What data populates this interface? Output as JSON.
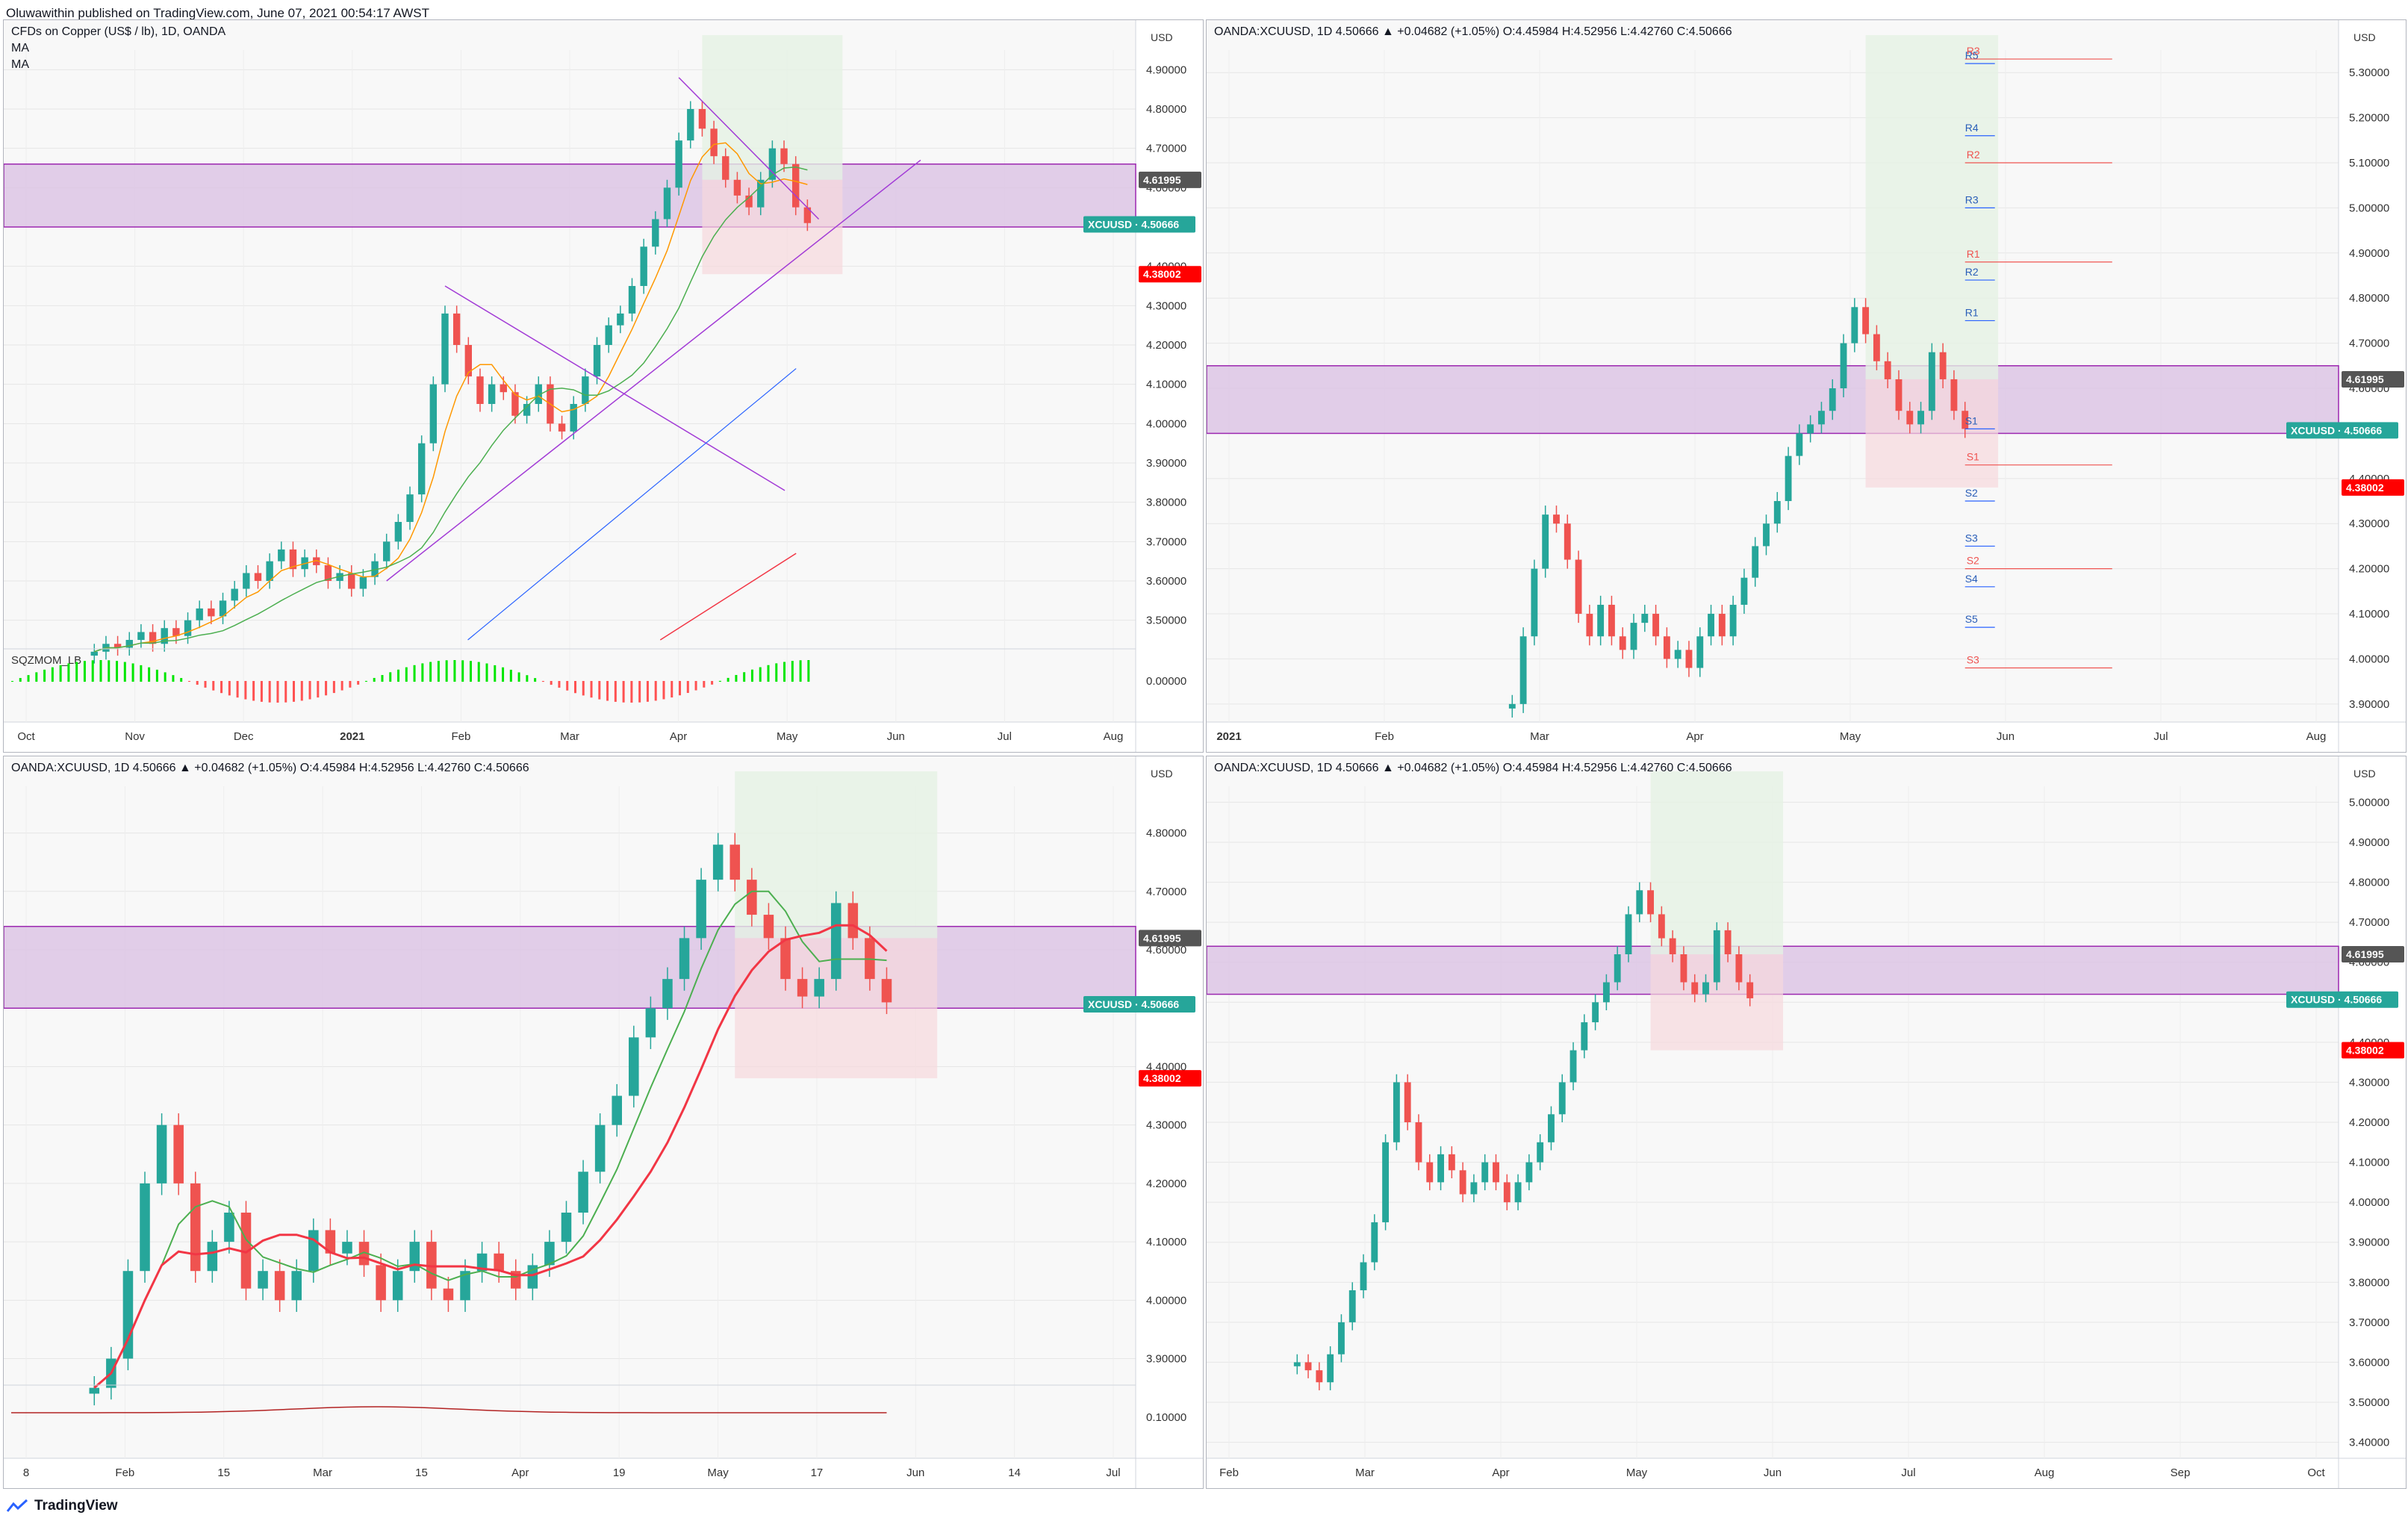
{
  "header": {
    "publisher": "Oluwawithin published on TradingView.com, June 07, 2021 00:54:17 AWST"
  },
  "footer": {
    "brand": "TradingView",
    "logo_icon": "tradingview-logo-icon"
  },
  "colors": {
    "up": "#26a69a",
    "down": "#ef5350",
    "zone": "#d9bfe3",
    "zone_border": "#9c27b0",
    "green_zone": "#e5f1e3",
    "red_zone": "#f6d8dd",
    "trend": "#a23bd6",
    "ma_orange": "#ff9800",
    "ma_green": "#4caf50",
    "ma_blue": "#2962ff",
    "ma_red": "#f23645",
    "xcu_tag": "#26a69a",
    "stop_tag": "#ff0000",
    "level_tag": "#555555"
  },
  "chart_data": [
    {
      "type": "candlestick",
      "id": "top-left",
      "legend": [
        "CFDs on Copper (US$ / lb), 1D, OANDA",
        "MA",
        "MA"
      ],
      "currency": "USD",
      "y_ticks": [
        "4.90000",
        "4.80000",
        "4.70000",
        "4.60000",
        "4.50000",
        "4.40000",
        "4.30000",
        "4.20000",
        "4.10000",
        "4.00000",
        "3.90000",
        "3.80000",
        "3.70000",
        "3.60000",
        "3.50000"
      ],
      "ylim": [
        3.45,
        4.95
      ],
      "x_labels": [
        "Oct",
        "Nov",
        "Dec",
        "2021",
        "Feb",
        "Mar",
        "Apr",
        "May",
        "Jun",
        "Jul",
        "Aug"
      ],
      "price_tags": [
        {
          "label": "4.61995",
          "value": 4.61995,
          "kind": "level"
        },
        {
          "label": "XCUUSD · 4.50666",
          "value": 4.50666,
          "kind": "xcu"
        },
        {
          "label": "4.38002",
          "value": 4.38002,
          "kind": "stop"
        }
      ],
      "zone": [
        4.5,
        4.66
      ],
      "indicator": {
        "name": "SQZMOM_LB",
        "zero_label": "0.00000"
      },
      "series": [
        {
          "name": "XCUUSD",
          "values": [
            3.42,
            3.44,
            3.43,
            3.45,
            3.47,
            3.44,
            3.48,
            3.46,
            3.5,
            3.53,
            3.51,
            3.55,
            3.58,
            3.62,
            3.6,
            3.65,
            3.68,
            3.63,
            3.66,
            3.64,
            3.6,
            3.62,
            3.58,
            3.61,
            3.65,
            3.7,
            3.75,
            3.82,
            3.95,
            4.1,
            4.28,
            4.2,
            4.12,
            4.05,
            4.1,
            4.08,
            4.02,
            4.05,
            4.1,
            4.0,
            3.98,
            4.05,
            4.12,
            4.2,
            4.25,
            4.28,
            4.35,
            4.45,
            4.52,
            4.6,
            4.72,
            4.8,
            4.75,
            4.68,
            4.62,
            4.58,
            4.55,
            4.62,
            4.7,
            4.66,
            4.55,
            4.51
          ]
        }
      ]
    },
    {
      "type": "candlestick",
      "id": "top-right",
      "legend": [
        "OANDA:XCUUSD, 1D  4.50666 ▲ +0.04682 (+1.05%) O:4.45984 H:4.52956 L:4.42760 C:4.50666"
      ],
      "currency": "USD",
      "y_ticks": [
        "5.30000",
        "5.20000",
        "5.10000",
        "5.00000",
        "4.90000",
        "4.80000",
        "4.70000",
        "4.60000",
        "4.50000",
        "4.40000",
        "4.30000",
        "4.20000",
        "4.10000",
        "4.00000",
        "3.90000"
      ],
      "ylim": [
        3.86,
        5.35
      ],
      "x_labels": [
        "2021",
        "Feb",
        "Mar",
        "Apr",
        "May",
        "Jun",
        "Jul",
        "Aug"
      ],
      "price_tags": [
        {
          "label": "4.61995",
          "value": 4.61995,
          "kind": "level"
        },
        {
          "label": "XCUUSD · 4.50666",
          "value": 4.50666,
          "kind": "xcu"
        },
        {
          "label": "4.38002",
          "value": 4.38002,
          "kind": "stop"
        }
      ],
      "zone": [
        4.5,
        4.65
      ],
      "pivots_blue": [
        {
          "label": "R5",
          "value": 5.32
        },
        {
          "label": "R4",
          "value": 5.16
        },
        {
          "label": "R3",
          "value": 5.0
        },
        {
          "label": "R2",
          "value": 4.84
        },
        {
          "label": "R1",
          "value": 4.75
        },
        {
          "label": "S1",
          "value": 4.51
        },
        {
          "label": "S2",
          "value": 4.35
        },
        {
          "label": "S3",
          "value": 4.25
        },
        {
          "label": "S4",
          "value": 4.16
        },
        {
          "label": "S5",
          "value": 4.07
        }
      ],
      "pivots_red": [
        {
          "label": "R3",
          "value": 5.33
        },
        {
          "label": "R2",
          "value": 5.1
        },
        {
          "label": "R1",
          "value": 4.88
        },
        {
          "label": "S1",
          "value": 4.43
        },
        {
          "label": "S2",
          "value": 4.2
        },
        {
          "label": "S3",
          "value": 3.98
        }
      ],
      "series": [
        {
          "name": "XCUUSD",
          "values": [
            3.9,
            4.05,
            4.2,
            4.32,
            4.3,
            4.22,
            4.1,
            4.05,
            4.12,
            4.05,
            4.02,
            4.08,
            4.1,
            4.05,
            4.0,
            4.02,
            3.98,
            4.05,
            4.1,
            4.05,
            4.12,
            4.18,
            4.25,
            4.3,
            4.35,
            4.45,
            4.5,
            4.52,
            4.55,
            4.6,
            4.7,
            4.78,
            4.72,
            4.66,
            4.62,
            4.55,
            4.52,
            4.55,
            4.68,
            4.62,
            4.55,
            4.51
          ]
        }
      ]
    },
    {
      "type": "candlestick",
      "id": "bottom-left",
      "legend": [
        "OANDA:XCUUSD, 1D  4.50666 ▲ +0.04682 (+1.05%) O:4.45984 H:4.52956 L:4.42760 C:4.50666"
      ],
      "currency": "USD",
      "y_ticks": [
        "4.80000",
        "4.70000",
        "4.60000",
        "4.50000",
        "4.40000",
        "4.30000",
        "4.20000",
        "4.10000",
        "4.00000",
        "3.90000"
      ],
      "ylim": [
        3.87,
        4.88
      ],
      "x_labels": [
        "8",
        "Feb",
        "15",
        "Mar",
        "15",
        "Apr",
        "19",
        "May",
        "17",
        "Jun",
        "14",
        "Jul"
      ],
      "price_tags": [
        {
          "label": "4.61995",
          "value": 4.61995,
          "kind": "level"
        },
        {
          "label": "XCUUSD · 4.50666",
          "value": 4.50666,
          "kind": "xcu"
        },
        {
          "label": "4.38002",
          "value": 4.38002,
          "kind": "stop"
        }
      ],
      "zone": [
        4.5,
        4.64
      ],
      "indicator": {
        "name": "",
        "zero_label": "0.10000"
      },
      "series": [
        {
          "name": "XCUUSD",
          "values": [
            3.85,
            3.9,
            4.05,
            4.2,
            4.3,
            4.2,
            4.05,
            4.1,
            4.15,
            4.02,
            4.05,
            4.0,
            4.05,
            4.12,
            4.08,
            4.1,
            4.06,
            4.0,
            4.05,
            4.1,
            4.02,
            4.0,
            4.05,
            4.08,
            4.05,
            4.02,
            4.06,
            4.1,
            4.15,
            4.22,
            4.3,
            4.35,
            4.45,
            4.5,
            4.55,
            4.62,
            4.72,
            4.78,
            4.72,
            4.66,
            4.62,
            4.55,
            4.52,
            4.55,
            4.68,
            4.62,
            4.55,
            4.51
          ]
        }
      ]
    },
    {
      "type": "candlestick",
      "id": "bottom-right",
      "legend": [
        "OANDA:XCUUSD, 1D  4.50666 ▲ +0.04682 (+1.05%) O:4.45984 H:4.52956 L:4.42760 C:4.50666"
      ],
      "currency": "USD",
      "y_ticks": [
        "5.00000",
        "4.90000",
        "4.80000",
        "4.70000",
        "4.60000",
        "4.50000",
        "4.40000",
        "4.30000",
        "4.20000",
        "4.10000",
        "4.00000",
        "3.90000",
        "3.80000",
        "3.70000",
        "3.60000",
        "3.50000",
        "3.40000"
      ],
      "ylim": [
        3.36,
        5.04
      ],
      "x_labels": [
        "Feb",
        "Mar",
        "Apr",
        "May",
        "Jun",
        "Jul",
        "Aug",
        "Sep",
        "Oct"
      ],
      "price_tags": [
        {
          "label": "4.61995",
          "value": 4.61995,
          "kind": "level"
        },
        {
          "label": "XCUUSD · 4.50666",
          "value": 4.50666,
          "kind": "xcu"
        },
        {
          "label": "4.38002",
          "value": 4.38002,
          "kind": "stop"
        }
      ],
      "zone": [
        4.52,
        4.64
      ],
      "series": [
        {
          "name": "XCUUSD",
          "values": [
            3.6,
            3.58,
            3.55,
            3.62,
            3.7,
            3.78,
            3.85,
            3.95,
            4.15,
            4.3,
            4.2,
            4.1,
            4.05,
            4.12,
            4.08,
            4.02,
            4.05,
            4.1,
            4.05,
            4.0,
            4.05,
            4.1,
            4.15,
            4.22,
            4.3,
            4.38,
            4.45,
            4.5,
            4.55,
            4.62,
            4.72,
            4.78,
            4.72,
            4.66,
            4.62,
            4.55,
            4.52,
            4.55,
            4.68,
            4.62,
            4.55,
            4.51
          ]
        }
      ]
    }
  ]
}
